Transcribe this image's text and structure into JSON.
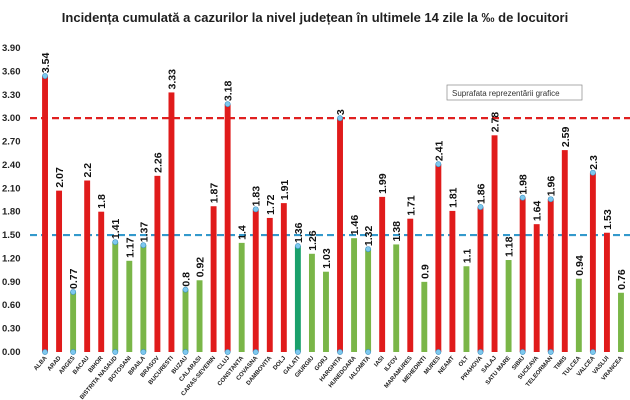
{
  "chart_data": {
    "type": "bar",
    "title": "Incidența cumulată a cazurilor la nivel județean în ultimele 14 zile la ‰ de locuitori",
    "ylim": [
      0,
      3.9
    ],
    "yticks": [
      "0.00",
      "0.30",
      "0.60",
      "0.90",
      "1.20",
      "1.50",
      "1.80",
      "2.10",
      "2.40",
      "2.70",
      "3.00",
      "3.30",
      "3.60",
      "3.90"
    ],
    "categories": [
      "ALBA",
      "ARAD",
      "ARGES",
      "BACAU",
      "BIHOR",
      "BISTRITA NASAUD",
      "BOTOSANI",
      "BRAILA",
      "BRASOV",
      "BUCURESTI",
      "BUZAU",
      "CALARASI",
      "CARAS-SEVERIN",
      "CLUJ",
      "CONSTANTA",
      "COVASNA",
      "DAMBOVITA",
      "DOLJ",
      "GALATI",
      "GIURGIU",
      "GORJ",
      "HARGHITA",
      "HUNEDOARA",
      "IALOMITA",
      "IASI",
      "ILFOV",
      "MARAMURES",
      "MEHEDINTI",
      "MURES",
      "NEAMT",
      "OLT",
      "PRAHOVA",
      "SALAJ",
      "SATU MARE",
      "SIBIU",
      "SUCEAVA",
      "TELEORMAN",
      "TIMIS",
      "TULCEA",
      "VALCEA",
      "VASLUI",
      "VRANCEA"
    ],
    "values": [
      3.54,
      2.07,
      0.77,
      2.2,
      1.8,
      1.41,
      1.17,
      1.37,
      2.26,
      3.33,
      0.8,
      0.92,
      1.87,
      3.18,
      1.4,
      1.83,
      1.72,
      1.91,
      1.36,
      1.26,
      1.03,
      3,
      1.46,
      1.32,
      1.99,
      1.38,
      1.71,
      0.9,
      2.41,
      1.81,
      1.1,
      1.86,
      2.78,
      1.18,
      1.98,
      1.64,
      1.96,
      2.59,
      0.94,
      2.3,
      1.53,
      0.76
    ],
    "value_labels": [
      "3.54",
      "2.07",
      "0.77",
      "2.2",
      "1.8",
      "1.41",
      "1.17",
      "1.37",
      "2.26",
      "3.33",
      "0.8",
      "0.92",
      "1.87",
      "3.18",
      "1.4",
      "1.83",
      "1.72",
      "1.91",
      "1.36",
      "1.26",
      "1.03",
      "3",
      "1.46",
      "1.32",
      "1.99",
      "1.38",
      "1.71",
      "0.9",
      "2.41",
      "1.81",
      "1.1",
      "1.86",
      "2.78",
      "1.18",
      "1.98",
      "1.64",
      "1.96",
      "2.59",
      "0.94",
      "2.3",
      "1.53",
      "0.76"
    ],
    "bar_colors": [
      "red",
      "red",
      "green",
      "red",
      "red",
      "green",
      "green",
      "green",
      "red",
      "red",
      "green",
      "green",
      "red",
      "red",
      "green",
      "red",
      "red",
      "red",
      "teal",
      "green",
      "green",
      "red",
      "green",
      "green",
      "red",
      "green",
      "red",
      "green",
      "red",
      "red",
      "green",
      "red",
      "red",
      "green",
      "red",
      "red",
      "red",
      "red",
      "green",
      "red",
      "red",
      "green"
    ],
    "selected": [
      0,
      2,
      5,
      7,
      10,
      13,
      15,
      18,
      21,
      23,
      28,
      31,
      34,
      36,
      39
    ],
    "reference_lines": [
      {
        "value": 3.0,
        "color": "#e02020"
      },
      {
        "value": 1.5,
        "color": "#3399cc"
      }
    ],
    "colors": {
      "red": "#e01b1b",
      "green": "#7ab648",
      "teal": "#1aa06b",
      "marker": "#7ec8ee"
    },
    "grid": false,
    "legend": "none",
    "tooltip": "Suprafata reprezentării grafice"
  }
}
